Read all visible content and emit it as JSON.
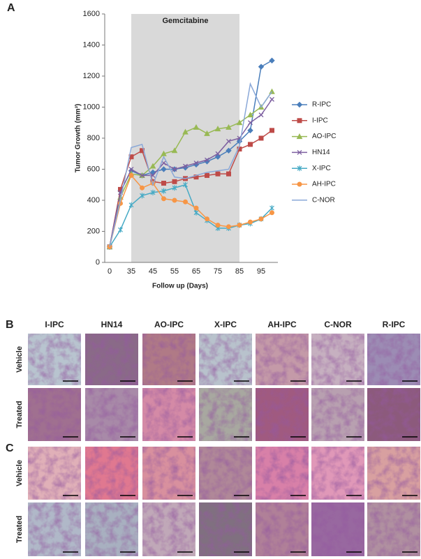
{
  "chart_data": {
    "type": "line",
    "panel_label": "A",
    "annotation": {
      "text": "Gemcitabine",
      "x_start": "35",
      "x_end": "85"
    },
    "xlabel": "Follow up (Days)",
    "ylabel": "Tumor Growth (mm³)",
    "categories": [
      "0",
      null,
      "35",
      null,
      "45",
      null,
      "55",
      null,
      "65",
      null,
      "75",
      null,
      "85",
      null,
      "95",
      null
    ],
    "ylim": [
      0,
      1600
    ],
    "yticks": [
      0,
      200,
      400,
      600,
      800,
      1000,
      1200,
      1400,
      1600
    ],
    "series": [
      {
        "name": "R-IPC",
        "color": "#4a7ebb",
        "marker": "diamond",
        "values": [
          100,
          460,
          590,
          560,
          580,
          600,
          600,
          610,
          630,
          650,
          680,
          720,
          780,
          850,
          1260,
          1300
        ]
      },
      {
        "name": "I-IPC",
        "color": "#be4b48",
        "marker": "square",
        "values": [
          100,
          470,
          680,
          720,
          520,
          510,
          520,
          540,
          550,
          560,
          570,
          570,
          730,
          760,
          800,
          850
        ]
      },
      {
        "name": "AO-IPC",
        "color": "#98b954",
        "marker": "triangle",
        "values": [
          100,
          420,
          570,
          560,
          620,
          700,
          720,
          840,
          870,
          830,
          860,
          870,
          900,
          950,
          1000,
          1100
        ]
      },
      {
        "name": "HN14",
        "color": "#7d5fa0",
        "marker": "x",
        "values": [
          100,
          450,
          600,
          560,
          560,
          640,
          600,
          620,
          640,
          660,
          700,
          780,
          800,
          900,
          950,
          1050
        ]
      },
      {
        "name": "X-IPC",
        "color": "#46aac5",
        "marker": "star",
        "values": [
          100,
          210,
          370,
          430,
          450,
          460,
          480,
          500,
          320,
          270,
          220,
          220,
          240,
          250,
          280,
          350
        ]
      },
      {
        "name": "AH-IPC",
        "color": "#f79646",
        "marker": "circle",
        "values": [
          100,
          380,
          560,
          480,
          510,
          410,
          400,
          390,
          350,
          280,
          240,
          230,
          240,
          260,
          280,
          320
        ]
      },
      {
        "name": "C-NOR",
        "color": "#8aa8d8",
        "marker": "none",
        "values": [
          100,
          400,
          740,
          760,
          500,
          680,
          550,
          540,
          560,
          580,
          590,
          600,
          750,
          1150,
          1000,
          1100
        ]
      }
    ]
  },
  "panel_B": {
    "label": "B",
    "columns": [
      "I-IPC",
      "HN14",
      "AO-IPC",
      "X-IPC",
      "AH-IPC",
      "C-NOR",
      "R-IPC"
    ],
    "rows": [
      "Vehicle",
      "Treated"
    ]
  },
  "panel_C": {
    "label": "C",
    "rows": [
      "Vehicle",
      "Treated"
    ]
  }
}
